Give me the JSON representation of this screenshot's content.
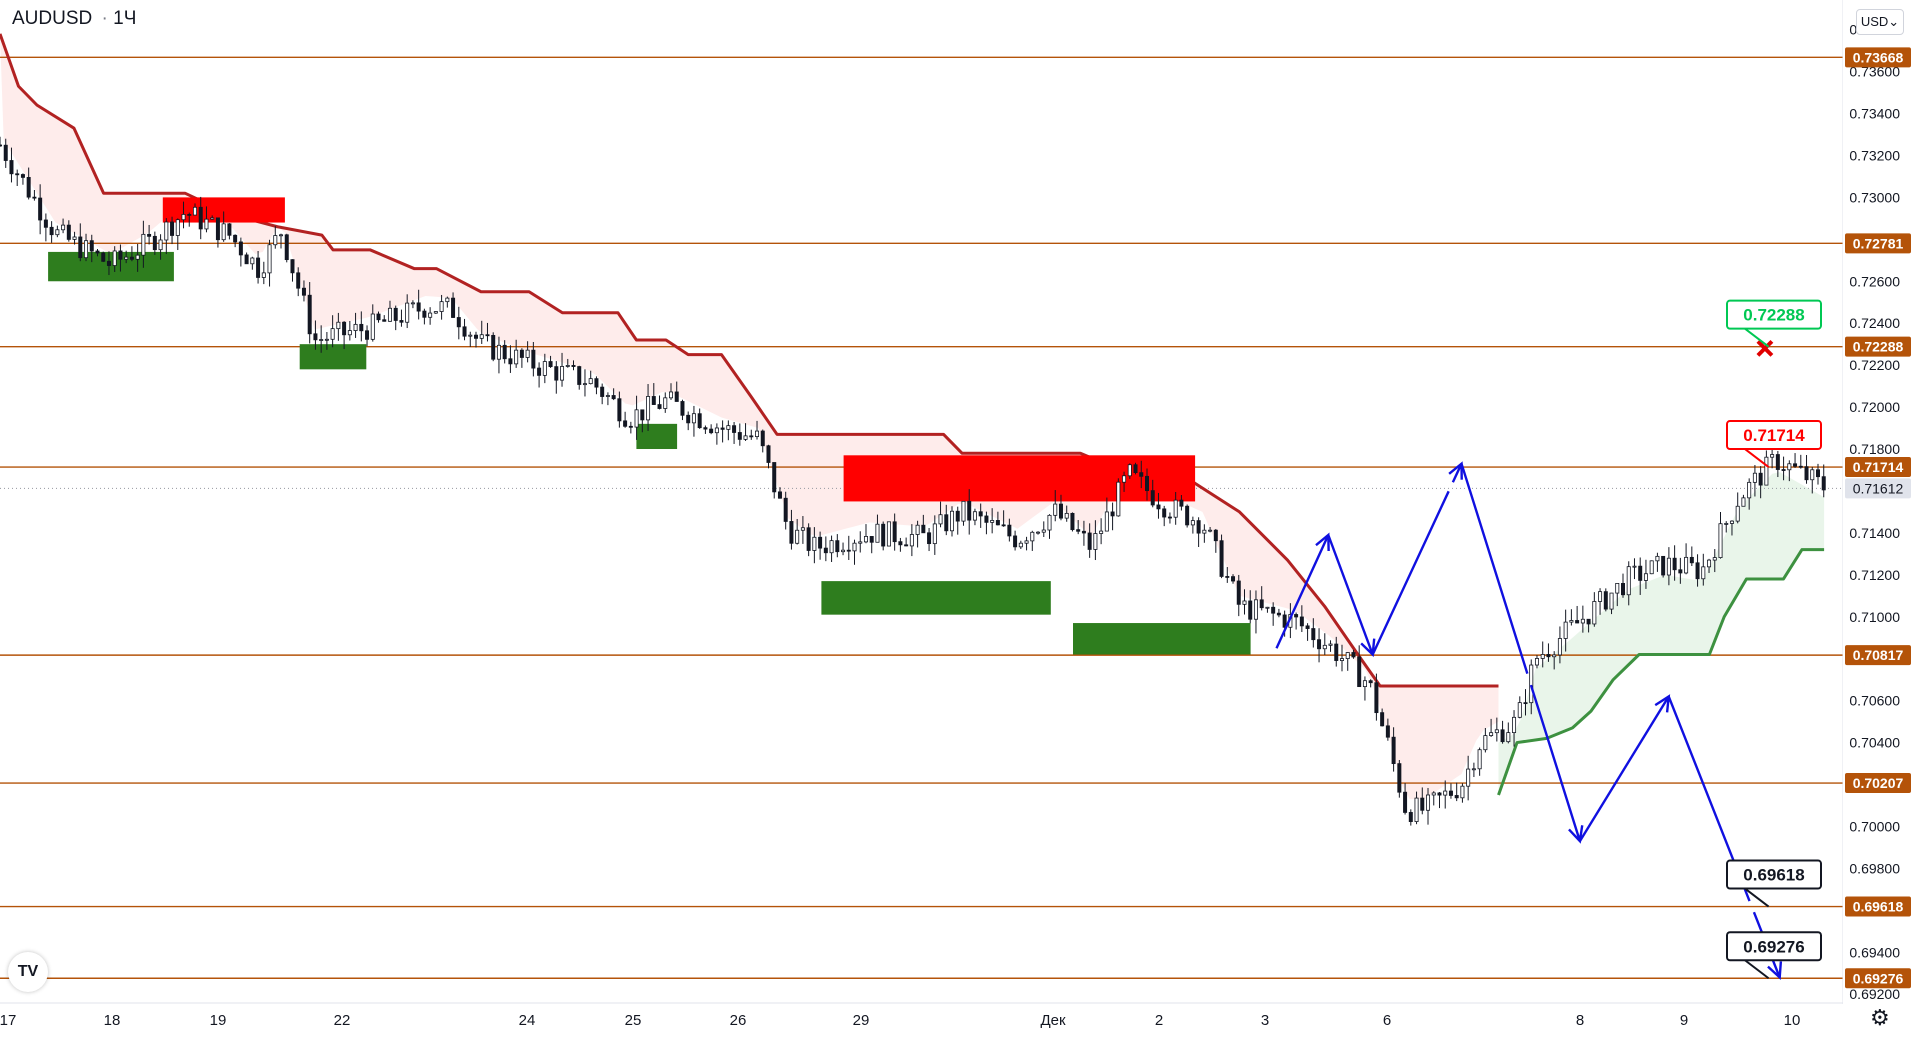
{
  "header": {
    "symbol": "AUDUSD",
    "interval": "1Ч"
  },
  "currency_select": {
    "value": "USD"
  },
  "logo": {
    "text": "TV"
  },
  "colors": {
    "level_line": "#b45309",
    "resistance_line": "#b22222",
    "support_line": "#3d9140",
    "red_zone": "#ff0000",
    "green_zone": "#2e7d1e",
    "forecast": "#1010e0",
    "target_tag_green": "#00c853",
    "target_tag_red": "#ff0000"
  },
  "chart_data": {
    "type": "candlestick",
    "symbol": "AUDUSD",
    "timeframe": "1Ч",
    "ylim": [
      0.6913,
      0.738
    ],
    "x_tick_labels": [
      "17",
      "18",
      "19",
      "22",
      "24",
      "25",
      "26",
      "29",
      "Дек",
      "2",
      "3",
      "6",
      "8",
      "9",
      "10"
    ],
    "y_tick_labels": [
      "0.73800",
      "0.73600",
      "0.73400",
      "0.73200",
      "0.73000",
      "0.72600",
      "0.72400",
      "0.72200",
      "0.72000",
      "0.71800",
      "0.71400",
      "0.71200",
      "0.71000",
      "0.70600",
      "0.70400",
      "0.70000",
      "0.69800",
      "0.69400",
      "0.69200"
    ],
    "y_tick_values": [
      0.738,
      0.736,
      0.734,
      0.732,
      0.73,
      0.726,
      0.724,
      0.722,
      0.72,
      0.718,
      0.714,
      0.712,
      0.71,
      0.706,
      0.704,
      0.7,
      0.698,
      0.694,
      0.692
    ],
    "levels": [
      {
        "label": "0.73668",
        "value": 0.73668
      },
      {
        "label": "0.72781",
        "value": 0.72781
      },
      {
        "label": "0.72288",
        "value": 0.72288
      },
      {
        "label": "0.71714",
        "value": 0.71714
      },
      {
        "label": "0.70817",
        "value": 0.70817
      },
      {
        "label": "0.70207",
        "value": 0.70207
      },
      {
        "label": "0.69618",
        "value": 0.69618
      },
      {
        "label": "0.69276",
        "value": 0.69276
      }
    ],
    "last_price": {
      "label": "0.71612",
      "value": 0.71612
    },
    "target_tags": [
      {
        "label": "0.72288",
        "value": 0.72288,
        "style": "green"
      },
      {
        "label": "0.71714",
        "value": 0.71714,
        "style": "red"
      },
      {
        "label": "0.69618",
        "value": 0.69618,
        "style": "black"
      },
      {
        "label": "0.69276",
        "value": 0.69276,
        "style": "black"
      }
    ],
    "resistance_line": [
      [
        0,
        0.7378
      ],
      [
        0.05,
        0.7353
      ],
      [
        0.1,
        0.7344
      ],
      [
        0.2,
        0.7333
      ],
      [
        0.28,
        0.7302
      ],
      [
        0.5,
        0.7302
      ],
      [
        0.62,
        0.7292
      ],
      [
        0.75,
        0.7286
      ],
      [
        0.87,
        0.7282
      ],
      [
        0.9,
        0.7275
      ],
      [
        1,
        0.7275
      ],
      [
        1.12,
        0.7266
      ],
      [
        1.18,
        0.7266
      ],
      [
        1.3,
        0.7255
      ],
      [
        1.43,
        0.7255
      ],
      [
        1.52,
        0.7245
      ],
      [
        1.67,
        0.7245
      ],
      [
        1.72,
        0.7232
      ],
      [
        1.8,
        0.7232
      ],
      [
        1.86,
        0.7225
      ],
      [
        1.95,
        0.7225
      ],
      [
        2.03,
        0.7205
      ],
      [
        2.1,
        0.7187
      ],
      [
        2.55,
        0.7187
      ],
      [
        2.6,
        0.7178
      ],
      [
        2.92,
        0.7178
      ],
      [
        3,
        0.7172
      ],
      [
        3.2,
        0.7167
      ],
      [
        3.35,
        0.715
      ],
      [
        3.48,
        0.7127
      ],
      [
        3.58,
        0.7105
      ],
      [
        3.67,
        0.7082
      ],
      [
        3.73,
        0.7067
      ],
      [
        4.05,
        0.7067
      ]
    ],
    "support_line": [
      [
        4.05,
        0.7015
      ],
      [
        4.1,
        0.704
      ],
      [
        4.18,
        0.7042
      ],
      [
        4.25,
        0.7047
      ],
      [
        4.3,
        0.7055
      ],
      [
        4.36,
        0.707
      ],
      [
        4.43,
        0.7082
      ],
      [
        4.62,
        0.7082
      ],
      [
        4.66,
        0.71
      ],
      [
        4.72,
        0.7118
      ],
      [
        4.82,
        0.7118
      ],
      [
        4.87,
        0.7132
      ],
      [
        4.93,
        0.7132
      ]
    ],
    "red_zones": [
      {
        "t0": 0.44,
        "t1": 0.77,
        "top": 0.73,
        "bottom": 0.7288
      },
      {
        "t0": 2.28,
        "t1": 3.23,
        "top": 0.7177,
        "bottom": 0.7155
      }
    ],
    "green_zones": [
      {
        "t0": 0.13,
        "t1": 0.47,
        "top": 0.7274,
        "bottom": 0.726
      },
      {
        "t0": 0.81,
        "t1": 0.99,
        "top": 0.723,
        "bottom": 0.7218
      },
      {
        "t0": 1.72,
        "t1": 1.83,
        "top": 0.7192,
        "bottom": 0.718
      },
      {
        "t0": 2.22,
        "t1": 2.84,
        "top": 0.7117,
        "bottom": 0.7101
      },
      {
        "t0": 2.9,
        "t1": 3.38,
        "top": 0.7097,
        "bottom": 0.7082
      }
    ],
    "forecast_path": [
      [
        3.45,
        0.7085
      ],
      [
        3.59,
        0.7139
      ],
      [
        3.71,
        0.7082
      ],
      [
        3.95,
        0.7173
      ],
      [
        4.27,
        0.6993
      ],
      [
        4.51,
        0.7062
      ],
      [
        4.81,
        0.6928
      ]
    ],
    "cross_marker": {
      "t": 4.77,
      "value": 0.7228
    },
    "candles_seed": 7
  }
}
